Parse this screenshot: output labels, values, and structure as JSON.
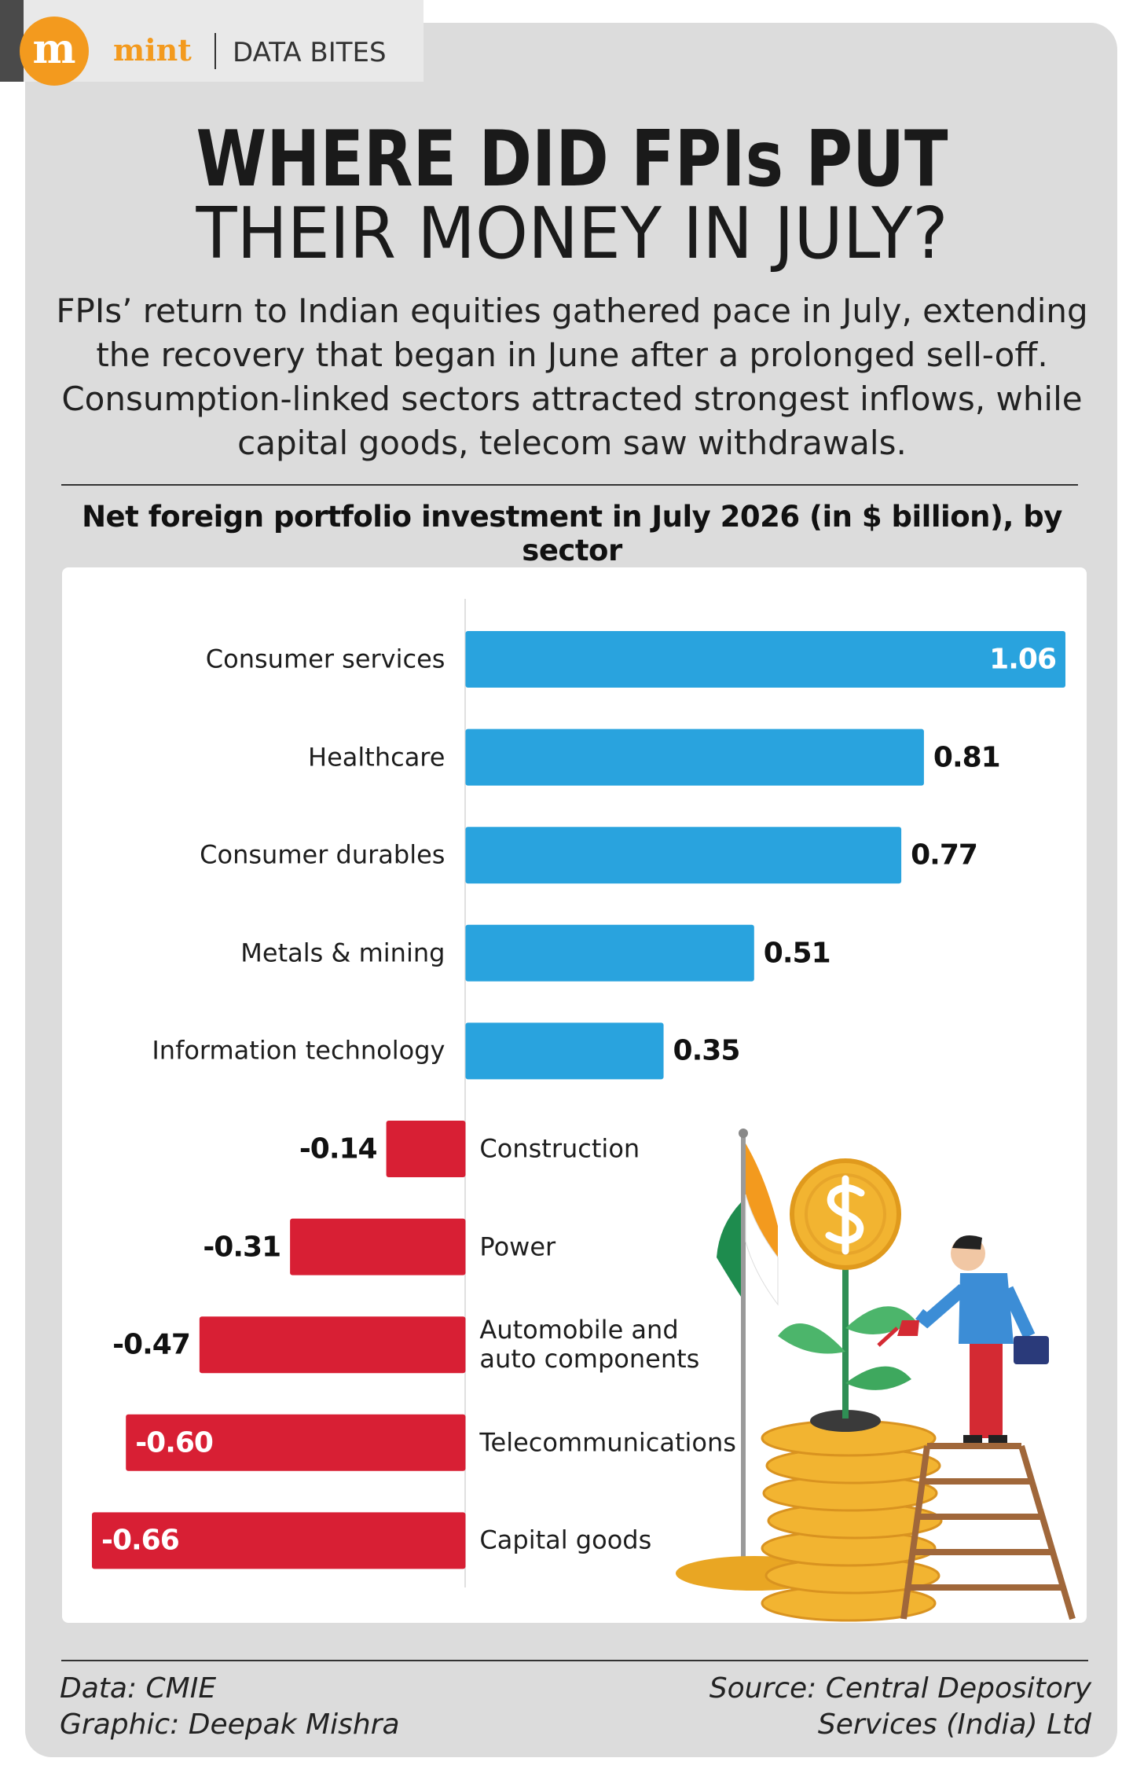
{
  "header": {
    "logo_letter": "m",
    "brand": "mint",
    "section": "DATA BITES"
  },
  "title_line1": "WHERE DID FPIs PUT",
  "title_line2": "THEIR MONEY IN JULY?",
  "subtitle": "FPIs’ return to Indian equities gathered pace in July, extending the recovery that began in June after a prolonged sell-off. Consumption-linked sectors attracted strongest inflows, while capital goods, telecom saw withdrawals.",
  "chart_data": {
    "type": "bar",
    "orientation": "horizontal",
    "title": "Net foreign portfolio investment in July 2026 (in $ billion), by sector",
    "categories": [
      "Consumer services",
      "Healthcare",
      "Consumer durables",
      "Metals & mining",
      "Information technology",
      "Construction",
      "Power",
      "Automobile and\nauto components",
      "Telecommunications",
      "Capital goods"
    ],
    "values": [
      1.06,
      0.81,
      0.77,
      0.51,
      0.35,
      -0.14,
      -0.31,
      -0.47,
      -0.6,
      -0.66
    ],
    "value_labels": [
      "1.06",
      "0.81",
      "0.77",
      "0.51",
      "0.35",
      "-0.14",
      "-0.31",
      "-0.47",
      "-0.60",
      "-0.66"
    ],
    "colors": {
      "positive": "#29a3de",
      "negative": "#d81f34"
    }
  },
  "footer": {
    "data": "Data: CMIE",
    "graphic": "Graphic: Deepak Mishra",
    "source": "Source: Central Depository\nServices (India) Ltd"
  }
}
